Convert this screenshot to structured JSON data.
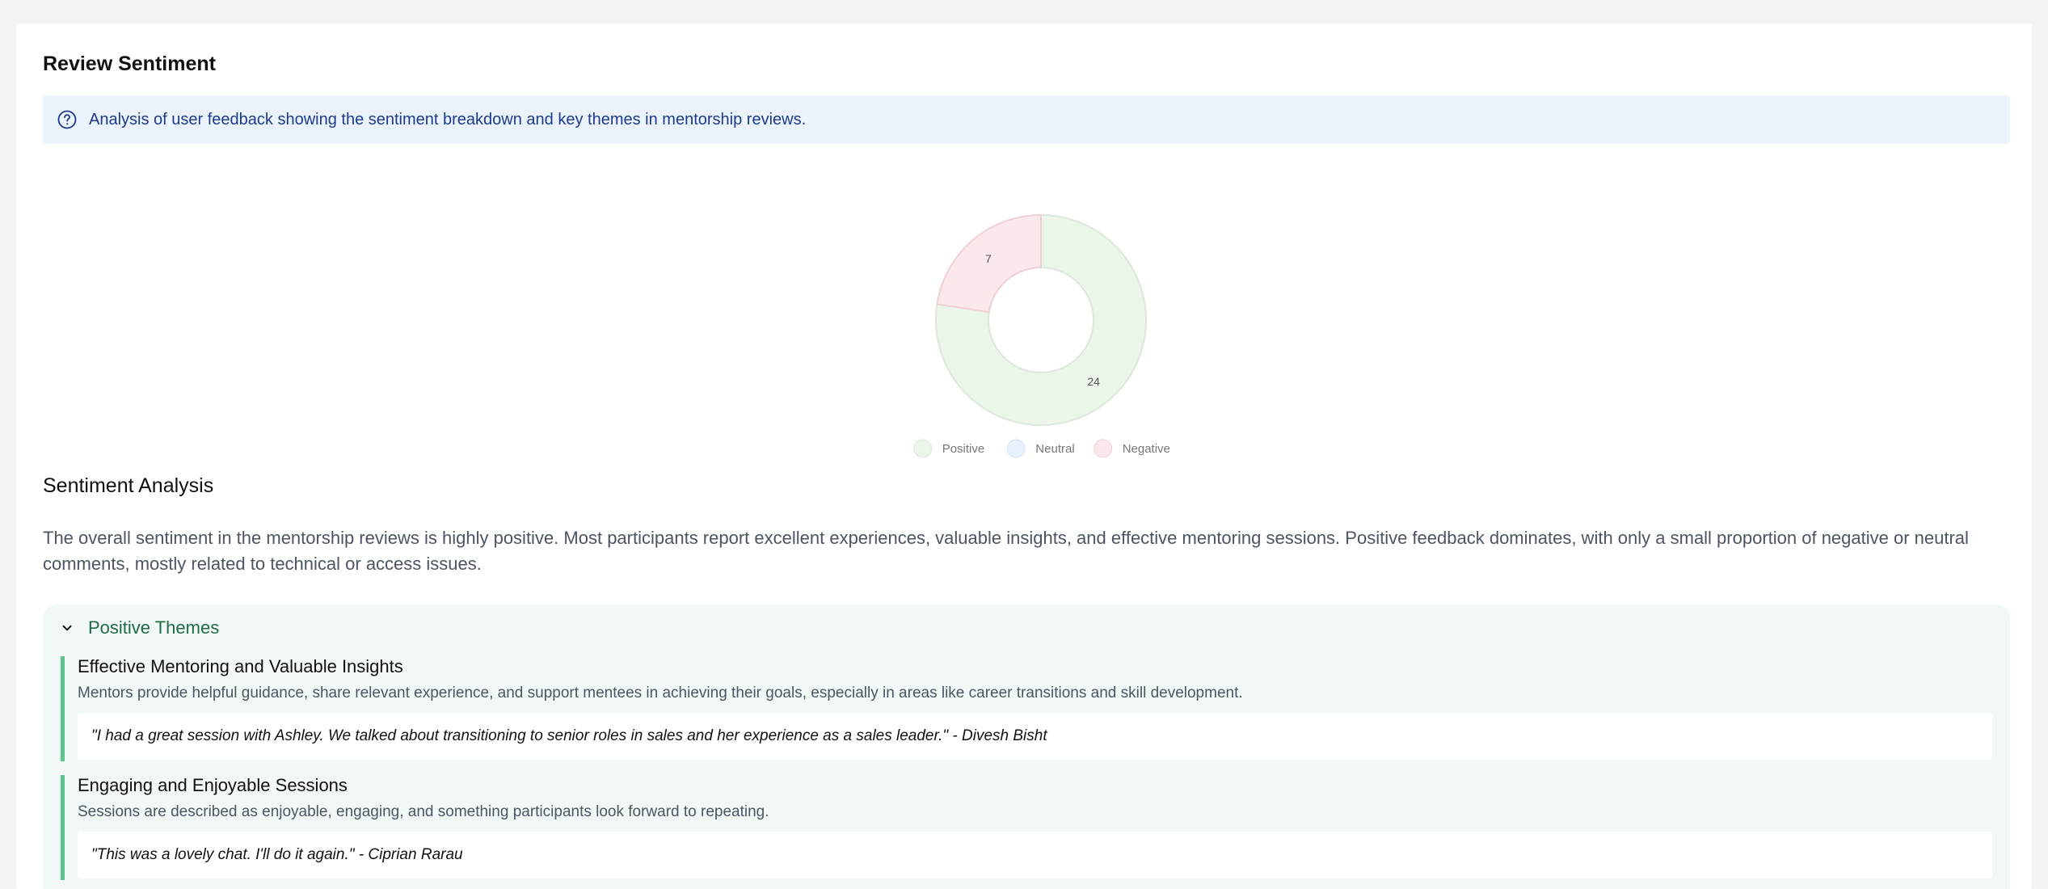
{
  "header": {
    "title": "Review Sentiment",
    "info_text": "Analysis of user feedback showing the sentiment breakdown and key themes in mentorship reviews."
  },
  "chart_data": {
    "type": "pie",
    "donut": true,
    "categories": [
      "Positive",
      "Neutral",
      "Negative"
    ],
    "values": [
      24,
      0,
      7
    ],
    "data_labels": [
      "24",
      "",
      "7"
    ],
    "colors": {
      "Positive": "#ebf5ea",
      "Neutral": "#e6f1fc",
      "Negative": "#fbe8ea"
    },
    "stroke_colors": {
      "Positive": "#dce8da",
      "Neutral": "#d5e4f4",
      "Negative": "#efd0d4"
    },
    "legend_position": "bottom",
    "legend": [
      "Positive",
      "Neutral",
      "Negative"
    ]
  },
  "analysis": {
    "title": "Sentiment Analysis",
    "summary": "The overall sentiment in the mentorship reviews is highly positive. Most participants report excellent experiences, valuable insights, and effective mentoring sessions. Positive feedback dominates, with only a small proportion of negative or neutral comments, mostly related to technical or access issues."
  },
  "positive_themes": {
    "label": "Positive Themes",
    "expanded": true,
    "items": [
      {
        "title": "Effective Mentoring and Valuable Insights",
        "description": "Mentors provide helpful guidance, share relevant experience, and support mentees in achieving their goals, especially in areas like career transitions and skill development.",
        "quote": "\"I had a great session with Ashley. We talked about transitioning to senior roles in sales and her experience as a sales leader.\" - Divesh Bisht"
      },
      {
        "title": "Engaging and Enjoyable Sessions",
        "description": "Sessions are described as enjoyable, engaging, and something participants look forward to repeating.",
        "quote": "\"This was a lovely chat. I'll do it again.\" - Ciprian Rarau"
      }
    ]
  },
  "icons": {
    "info": "help-circle-icon",
    "toggle": "chevron-down-icon"
  }
}
